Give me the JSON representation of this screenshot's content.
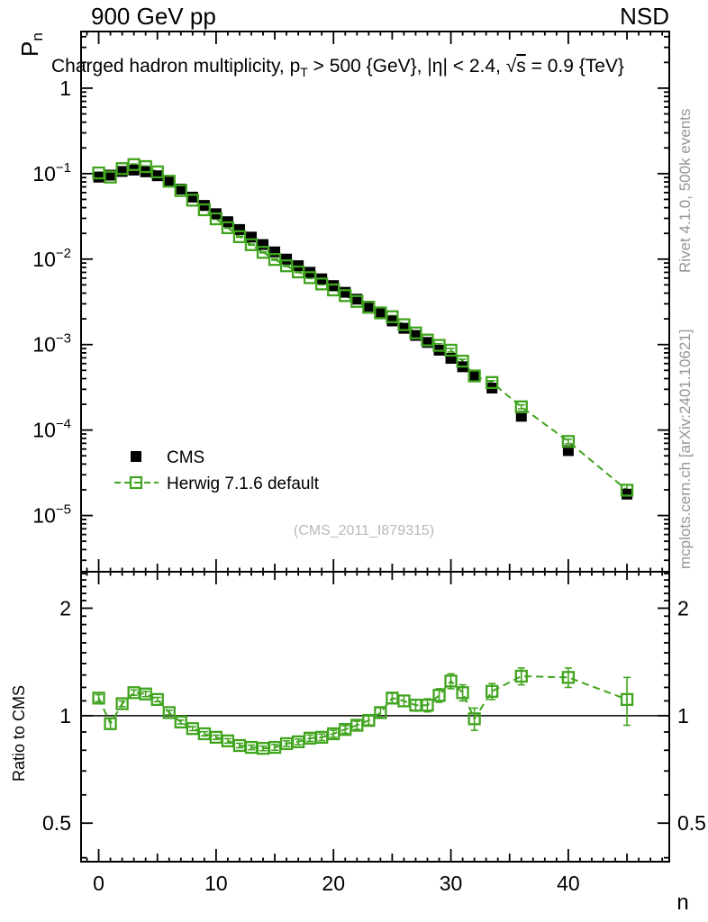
{
  "header": {
    "left": "900 GeV pp",
    "right": "NSD"
  },
  "title_parts": [
    {
      "t": "Charged hadron multiplicity, p"
    },
    {
      "t": "T",
      "style": "sub"
    },
    {
      "t": " > 500 {GeV}, |η| < 2.4, "
    },
    {
      "t": "√"
    },
    {
      "t": "s",
      "style": "overline"
    },
    {
      "t": " = 0.9 {TeV}"
    }
  ],
  "y_axis_title_parts": [
    {
      "t": "P"
    },
    {
      "t": "n",
      "style": "sub"
    }
  ],
  "ratio_axis_label": "Ratio to CMS",
  "x_axis_label": "n",
  "watermark": "(CMS_2011_I879315)",
  "credits": {
    "top": "Rivet 4.1.0,  500k events",
    "bottom": "mcplots.cern.ch [arXiv:2401.10621]"
  },
  "legend": [
    {
      "label": "CMS"
    },
    {
      "label": "Herwig 7.1.6 default"
    }
  ],
  "colors": {
    "data": "#000000",
    "mc": "#40a41e",
    "credits": "#969696",
    "watermark": "#b9b9b9"
  },
  "chart_data": {
    "type": "scatter",
    "title": "Charged hadron multiplicity, pT > 500 {GeV}, |eta| < 2.4, sqrt(s) = 0.9 {TeV}",
    "xlabel": "n",
    "ylabel": "Pn",
    "ratio_ylabel": "Ratio to CMS",
    "grid": false,
    "legend_position": "inside-left-lower",
    "x": [
      0,
      1,
      2,
      3,
      4,
      5,
      6,
      7,
      8,
      9,
      10,
      11,
      12,
      13,
      14,
      15,
      16,
      17,
      18,
      19,
      20,
      21,
      22,
      23,
      24,
      25,
      26,
      27,
      28,
      29,
      30,
      31,
      32,
      33.5,
      36,
      40,
      45
    ],
    "series": [
      {
        "name": "CMS",
        "marker": "filled-square",
        "color": "#000000",
        "values": [
          0.091,
          0.096,
          0.106,
          0.11,
          0.105,
          0.0945,
          0.08,
          0.066,
          0.0531,
          0.0425,
          0.034,
          0.0274,
          0.0222,
          0.0181,
          0.0148,
          0.01215,
          0.01,
          0.00838,
          0.00702,
          0.00588,
          0.0049,
          0.00409,
          0.0034,
          0.00281,
          0.0023,
          0.00189,
          0.00155,
          0.00128,
          0.00106,
          0.00086,
          0.00069,
          0.00055,
          0.00044,
          0.00031,
          0.000145,
          5.75e-05,
          1.78e-05
        ]
      },
      {
        "name": "Herwig 7.1.6 default",
        "marker": "open-square",
        "line": "dashed",
        "color": "#40a41e",
        "values": [
          0.1019,
          0.0912,
          0.1145,
          0.1276,
          0.1208,
          0.1049,
          0.0816,
          0.0634,
          0.0489,
          0.0378,
          0.0296,
          0.0233,
          0.0183,
          0.01475,
          0.012,
          0.0099,
          0.00835,
          0.00708,
          0.00607,
          0.00512,
          0.00436,
          0.00374,
          0.0032,
          0.00273,
          0.00235,
          0.00212,
          0.00171,
          0.00137,
          0.00113,
          0.00098,
          0.00086,
          0.00064,
          0.00043,
          0.00036,
          0.000187,
          7.36e-05,
          1.98e-05
        ],
        "ratio": [
          1.12,
          0.95,
          1.08,
          1.16,
          1.15,
          1.11,
          1.02,
          0.96,
          0.92,
          0.89,
          0.87,
          0.85,
          0.825,
          0.815,
          0.81,
          0.815,
          0.835,
          0.845,
          0.865,
          0.87,
          0.89,
          0.915,
          0.94,
          0.97,
          1.02,
          1.12,
          1.1,
          1.07,
          1.07,
          1.14,
          1.25,
          1.16,
          0.98,
          1.17,
          1.29,
          1.28,
          1.11
        ],
        "ratio_err": [
          0.025,
          0.035,
          0.02,
          0.02,
          0.02,
          0.015,
          0.015,
          0.012,
          0.012,
          0.012,
          0.012,
          0.012,
          0.012,
          0.012,
          0.012,
          0.015,
          0.015,
          0.015,
          0.018,
          0.018,
          0.02,
          0.022,
          0.025,
          0.028,
          0.032,
          0.035,
          0.038,
          0.04,
          0.045,
          0.05,
          0.06,
          0.06,
          0.07,
          0.06,
          0.07,
          0.08,
          0.17
        ]
      }
    ],
    "main_axis": {
      "x_min": -1.5,
      "x_max": 48.6,
      "y_min": 2.2e-06,
      "y_max": 4.6,
      "y_scale": "log",
      "yticks_exp": [
        0,
        -1,
        -2,
        -3,
        -4,
        -5
      ]
    },
    "ratio_axis": {
      "y_min": 0.39,
      "y_max": 2.53,
      "y_scale": "log",
      "yticks": [
        2,
        1,
        0.5
      ]
    },
    "xticks_major": [
      0,
      10,
      20,
      30,
      40
    ]
  }
}
